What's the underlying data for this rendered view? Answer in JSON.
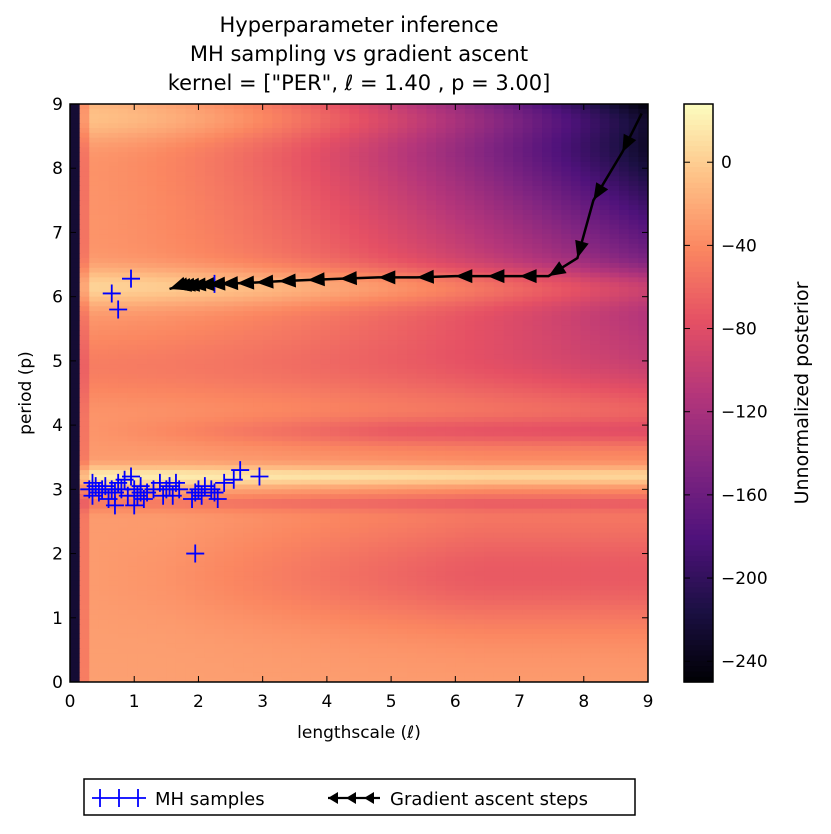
{
  "chart_data": {
    "type": "heatmap",
    "title_lines": [
      "Hyperparameter inference",
      "MH sampling vs gradient ascent",
      "kernel = [\"PER\", ℓ = 1.40 , p = 3.00]"
    ],
    "xlabel": "lengthscale (ℓ)",
    "ylabel": "period (p)",
    "xlim": [
      0,
      9
    ],
    "ylim": [
      0,
      9
    ],
    "xticks": [
      "0",
      "1",
      "2",
      "3",
      "4",
      "5",
      "6",
      "7",
      "8",
      "9"
    ],
    "yticks": [
      "0",
      "1",
      "2",
      "3",
      "4",
      "5",
      "6",
      "7",
      "8",
      "9"
    ],
    "colorbar": {
      "label": "Unnormalized posterior",
      "range": [
        -250,
        28
      ],
      "ticks": [
        {
          "value": 0,
          "label": "0"
        },
        {
          "value": -40,
          "label": "−40"
        },
        {
          "value": -80,
          "label": "−80"
        },
        {
          "value": -120,
          "label": "−120"
        },
        {
          "value": -160,
          "label": "−160"
        },
        {
          "value": -200,
          "label": "−200"
        },
        {
          "value": -240,
          "label": "−240"
        }
      ],
      "colormap": "magma",
      "colors": [
        "#000004",
        "#1c1044",
        "#4f127b",
        "#812581",
        "#b5367a",
        "#e55064",
        "#fb8761",
        "#fec287",
        "#fcfdbf"
      ]
    },
    "series": [
      {
        "name": "MH samples",
        "marker": "plus",
        "color": "#0000ff",
        "x": [
          0.3,
          0.35,
          0.4,
          0.45,
          0.5,
          0.55,
          0.6,
          0.65,
          0.7,
          0.75,
          0.8,
          0.85,
          0.9,
          0.95,
          1.0,
          1.05,
          1.1,
          1.15,
          1.2,
          1.3,
          1.4,
          1.45,
          1.5,
          1.55,
          1.6,
          1.65,
          1.7,
          1.9,
          1.95,
          2.0,
          2.05,
          2.1,
          2.2,
          2.3,
          2.4,
          2.55,
          2.65,
          2.95,
          0.35,
          0.7,
          1.0,
          1.1,
          1.95,
          2.25,
          0.65,
          0.75,
          0.95,
          2.25
        ],
        "y": [
          3.0,
          3.1,
          3.05,
          2.95,
          3.0,
          3.05,
          2.85,
          3.0,
          2.75,
          3.1,
          3.0,
          3.15,
          2.9,
          3.2,
          3.0,
          2.9,
          3.05,
          2.85,
          2.95,
          3.0,
          3.1,
          2.9,
          3.0,
          3.05,
          2.9,
          3.1,
          3.0,
          2.85,
          2.95,
          3.0,
          2.9,
          3.05,
          3.0,
          2.85,
          3.1,
          3.15,
          3.3,
          3.2,
          2.9,
          2.95,
          2.75,
          2.95,
          2.0,
          2.95,
          6.05,
          5.8,
          6.28,
          6.2
        ]
      },
      {
        "name": "Gradient ascent steps",
        "marker": "arrow",
        "color": "#000000",
        "x": [
          8.9,
          8.6,
          8.15,
          7.9,
          7.45,
          7.0,
          6.5,
          6.0,
          5.4,
          4.8,
          4.2,
          3.7,
          3.25,
          2.9,
          2.6,
          2.35,
          2.15,
          1.98,
          1.85,
          1.75,
          1.68,
          1.62,
          1.58,
          1.55
        ],
        "y": [
          8.85,
          8.25,
          7.5,
          6.6,
          6.32,
          6.32,
          6.32,
          6.32,
          6.3,
          6.3,
          6.28,
          6.26,
          6.24,
          6.22,
          6.21,
          6.2,
          6.19,
          6.18,
          6.17,
          6.16,
          6.15,
          6.14,
          6.13,
          6.12
        ]
      }
    ],
    "legend": {
      "placement": "bottom-center",
      "entries": [
        "MH samples",
        "Gradient ascent steps"
      ]
    }
  }
}
